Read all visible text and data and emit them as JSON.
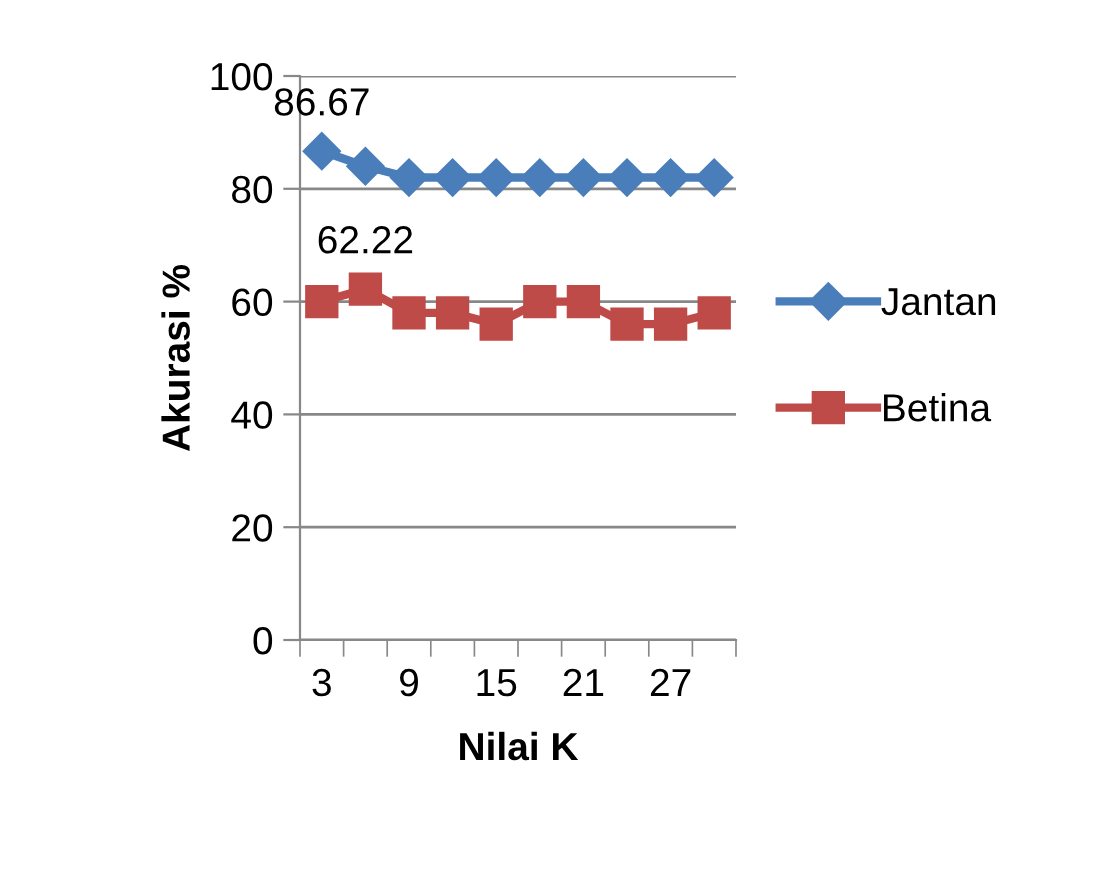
{
  "chart_data": {
    "type": "line",
    "xlabel": "Nilai K",
    "ylabel": "Akurasi %",
    "categories": [
      "3",
      null,
      "9",
      null,
      "15",
      null,
      "21",
      null,
      "27",
      null
    ],
    "series": [
      {
        "name": "Jantan",
        "color": "#4a7ebb",
        "marker": "diamond",
        "values": [
          86.67,
          84,
          82,
          82,
          82,
          82,
          82,
          82,
          82,
          82
        ],
        "value_labels": [
          "86.67",
          null,
          null,
          null,
          null,
          null,
          null,
          null,
          null,
          null
        ]
      },
      {
        "name": "Betina",
        "color": "#be4b48",
        "marker": "square",
        "values": [
          60,
          62.22,
          58,
          58,
          56,
          60,
          60,
          56,
          56,
          58
        ],
        "value_labels": [
          null,
          "62.22",
          null,
          null,
          null,
          null,
          null,
          null,
          null,
          null
        ]
      }
    ],
    "ylim": [
      0,
      100
    ],
    "yticks": [
      0,
      20,
      40,
      60,
      80,
      100
    ],
    "grid": "y",
    "legend": "right"
  }
}
